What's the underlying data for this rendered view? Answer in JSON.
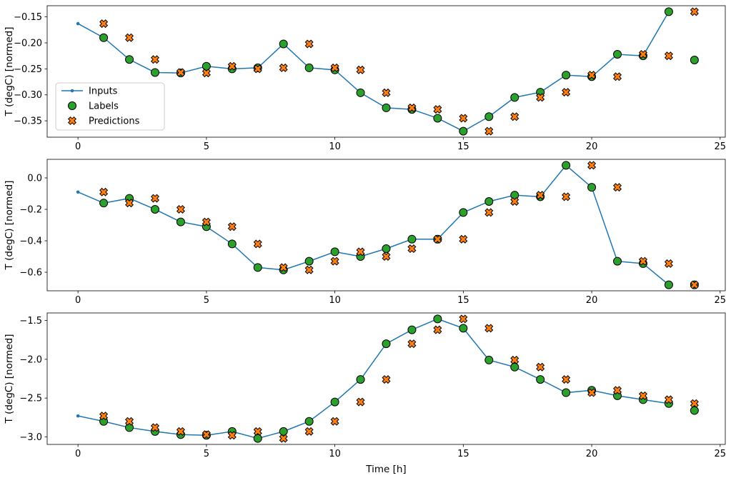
{
  "figure": {
    "background": "#ffffff",
    "xlabel": "Time [h]",
    "xlim": [
      -1.2,
      25.2
    ],
    "xticks": [
      0,
      5,
      10,
      15,
      20,
      25
    ],
    "xtick_labels": [
      "0",
      "5",
      "10",
      "15",
      "20",
      "25"
    ],
    "colors": {
      "inputs": "#1f77b4",
      "labels": "#2ca02c",
      "predictions": "#ff7f0e",
      "marker_edge": "#000000",
      "axis": "#000000",
      "legend_border": "#cccccc"
    },
    "legend": {
      "position": "center-left",
      "entries": [
        {
          "label": "Inputs",
          "marker": "line-dot",
          "color": "#1f77b4"
        },
        {
          "label": "Labels",
          "marker": "circle",
          "color": "#2ca02c"
        },
        {
          "label": "Predictions",
          "marker": "x",
          "color": "#ff7f0e"
        }
      ]
    }
  },
  "chart_data": [
    {
      "type": "line",
      "index": 1,
      "ylabel": "T (degC) [normed]",
      "ylim": [
        -0.3815,
        -0.1285
      ],
      "yticks": [
        -0.15,
        -0.2,
        -0.25,
        -0.3,
        -0.35
      ],
      "ytick_labels": [
        "−0.15",
        "−0.20",
        "−0.25",
        "−0.30",
        "−0.35"
      ],
      "series": [
        {
          "name": "Inputs",
          "type": "line",
          "x": [
            0,
            1,
            2,
            3,
            4,
            5,
            6,
            7,
            8,
            9,
            10,
            11,
            12,
            13,
            14,
            15,
            16,
            17,
            18,
            19,
            20,
            21,
            22,
            23
          ],
          "y": [
            -0.163,
            -0.19,
            -0.232,
            -0.257,
            -0.258,
            -0.245,
            -0.25,
            -0.248,
            -0.202,
            -0.248,
            -0.252,
            -0.296,
            -0.325,
            -0.328,
            -0.345,
            -0.37,
            -0.342,
            -0.305,
            -0.295,
            -0.262,
            -0.265,
            -0.222,
            -0.225,
            -0.14
          ]
        },
        {
          "name": "Labels",
          "type": "scatter-circle",
          "x": [
            1,
            2,
            3,
            4,
            5,
            6,
            7,
            8,
            9,
            10,
            11,
            12,
            13,
            14,
            15,
            16,
            17,
            18,
            19,
            20,
            21,
            22,
            23,
            24
          ],
          "y": [
            -0.19,
            -0.232,
            -0.257,
            -0.258,
            -0.245,
            -0.25,
            -0.248,
            -0.202,
            -0.248,
            -0.252,
            -0.296,
            -0.325,
            -0.328,
            -0.345,
            -0.37,
            -0.342,
            -0.305,
            -0.295,
            -0.262,
            -0.265,
            -0.222,
            -0.225,
            -0.14,
            -0.233
          ]
        },
        {
          "name": "Predictions",
          "type": "scatter-x",
          "x": [
            1,
            2,
            3,
            4,
            5,
            6,
            7,
            8,
            9,
            10,
            11,
            12,
            13,
            14,
            15,
            16,
            17,
            18,
            19,
            20,
            21,
            22,
            23,
            24
          ],
          "y": [
            -0.163,
            -0.19,
            -0.232,
            -0.257,
            -0.258,
            -0.245,
            -0.25,
            -0.248,
            -0.202,
            -0.248,
            -0.252,
            -0.296,
            -0.325,
            -0.328,
            -0.345,
            -0.37,
            -0.342,
            -0.305,
            -0.295,
            -0.262,
            -0.265,
            -0.222,
            -0.225,
            -0.14
          ]
        }
      ]
    },
    {
      "type": "line",
      "index": 2,
      "ylabel": "T (degC) [normed]",
      "ylim": [
        -0.718,
        0.118
      ],
      "yticks": [
        0.0,
        -0.2,
        -0.4,
        -0.6
      ],
      "ytick_labels": [
        "0.0",
        "−0.2",
        "−0.4",
        "−0.6"
      ],
      "series": [
        {
          "name": "Inputs",
          "type": "line",
          "x": [
            0,
            1,
            2,
            3,
            4,
            5,
            6,
            7,
            8,
            9,
            10,
            11,
            12,
            13,
            14,
            15,
            16,
            17,
            18,
            19,
            20,
            21,
            22,
            23
          ],
          "y": [
            -0.09,
            -0.16,
            -0.13,
            -0.2,
            -0.28,
            -0.31,
            -0.42,
            -0.57,
            -0.585,
            -0.53,
            -0.47,
            -0.5,
            -0.45,
            -0.39,
            -0.39,
            -0.22,
            -0.15,
            -0.11,
            -0.12,
            0.08,
            -0.06,
            -0.53,
            -0.545,
            -0.68
          ]
        },
        {
          "name": "Labels",
          "type": "scatter-circle",
          "x": [
            1,
            2,
            3,
            4,
            5,
            6,
            7,
            8,
            9,
            10,
            11,
            12,
            13,
            14,
            15,
            16,
            17,
            18,
            19,
            20,
            21,
            22,
            23,
            24
          ],
          "y": [
            -0.16,
            -0.13,
            -0.2,
            -0.28,
            -0.31,
            -0.42,
            -0.57,
            -0.585,
            -0.53,
            -0.47,
            -0.5,
            -0.45,
            -0.39,
            -0.39,
            -0.22,
            -0.15,
            -0.11,
            -0.12,
            0.08,
            -0.06,
            -0.53,
            -0.545,
            -0.68,
            -0.68
          ]
        },
        {
          "name": "Predictions",
          "type": "scatter-x",
          "x": [
            1,
            2,
            3,
            4,
            5,
            6,
            7,
            8,
            9,
            10,
            11,
            12,
            13,
            14,
            15,
            16,
            17,
            18,
            19,
            20,
            21,
            22,
            23,
            24
          ],
          "y": [
            -0.09,
            -0.16,
            -0.13,
            -0.2,
            -0.28,
            -0.31,
            -0.42,
            -0.57,
            -0.585,
            -0.53,
            -0.47,
            -0.5,
            -0.45,
            -0.39,
            -0.39,
            -0.22,
            -0.15,
            -0.11,
            -0.12,
            0.08,
            -0.06,
            -0.53,
            -0.545,
            -0.68
          ]
        }
      ]
    },
    {
      "type": "line",
      "index": 3,
      "ylabel": "T (degC) [normed]",
      "ylim": [
        -3.097,
        -1.403
      ],
      "yticks": [
        -1.5,
        -2.0,
        -2.5,
        -3.0
      ],
      "ytick_labels": [
        "−1.5",
        "−2.0",
        "−2.5",
        "−3.0"
      ],
      "series": [
        {
          "name": "Inputs",
          "type": "line",
          "x": [
            0,
            1,
            2,
            3,
            4,
            5,
            6,
            7,
            8,
            9,
            10,
            11,
            12,
            13,
            14,
            15,
            16,
            17,
            18,
            19,
            20,
            21,
            22,
            23
          ],
          "y": [
            -2.73,
            -2.8,
            -2.88,
            -2.93,
            -2.97,
            -2.98,
            -2.93,
            -3.02,
            -2.93,
            -2.8,
            -2.55,
            -2.26,
            -1.8,
            -1.62,
            -1.48,
            -1.6,
            -2.01,
            -2.1,
            -2.26,
            -2.43,
            -2.4,
            -2.47,
            -2.52,
            -2.57
          ]
        },
        {
          "name": "Labels",
          "type": "scatter-circle",
          "x": [
            1,
            2,
            3,
            4,
            5,
            6,
            7,
            8,
            9,
            10,
            11,
            12,
            13,
            14,
            15,
            16,
            17,
            18,
            19,
            20,
            21,
            22,
            23,
            24
          ],
          "y": [
            -2.8,
            -2.88,
            -2.93,
            -2.97,
            -2.98,
            -2.93,
            -3.02,
            -2.93,
            -2.8,
            -2.55,
            -2.26,
            -1.8,
            -1.62,
            -1.48,
            -1.6,
            -2.01,
            -2.1,
            -2.26,
            -2.43,
            -2.4,
            -2.47,
            -2.52,
            -2.57,
            -2.66
          ]
        },
        {
          "name": "Predictions",
          "type": "scatter-x",
          "x": [
            1,
            2,
            3,
            4,
            5,
            6,
            7,
            8,
            9,
            10,
            11,
            12,
            13,
            14,
            15,
            16,
            17,
            18,
            19,
            20,
            21,
            22,
            23,
            24
          ],
          "y": [
            -2.73,
            -2.8,
            -2.88,
            -2.93,
            -2.97,
            -2.98,
            -2.93,
            -3.02,
            -2.93,
            -2.8,
            -2.55,
            -2.26,
            -1.8,
            -1.62,
            -1.48,
            -1.6,
            -2.01,
            -2.1,
            -2.26,
            -2.43,
            -2.4,
            -2.47,
            -2.52,
            -2.57
          ]
        }
      ]
    }
  ]
}
